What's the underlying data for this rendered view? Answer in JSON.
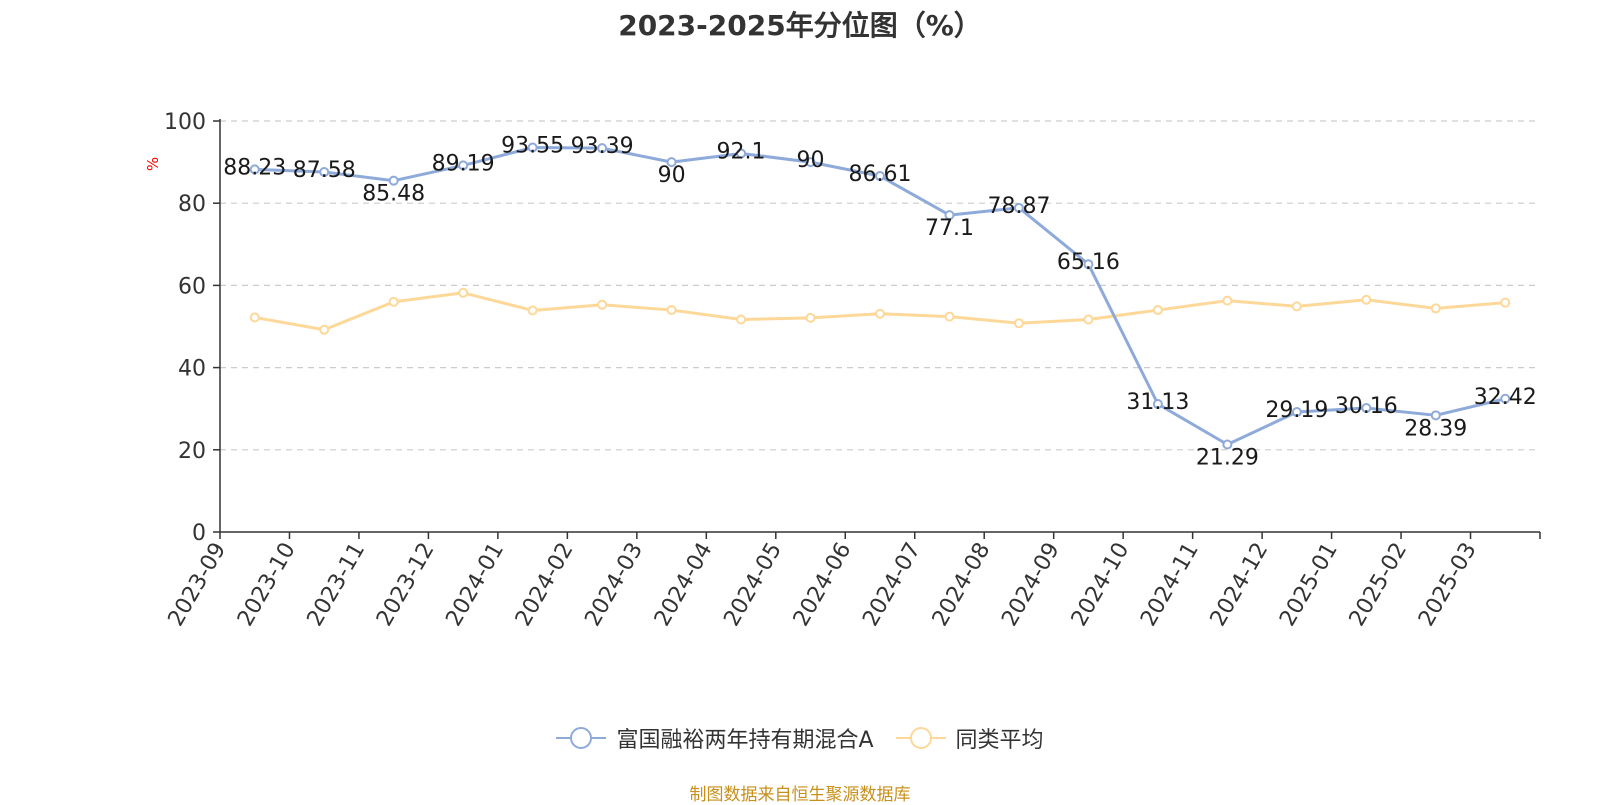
{
  "chart_data": {
    "type": "line",
    "title": "2023-2025年分位图（%）",
    "ylabel": "%",
    "ylim": [
      0,
      100
    ],
    "yticks": [
      0,
      20,
      40,
      60,
      80,
      100
    ],
    "grid": true,
    "legend_position": "bottom",
    "categories": [
      "2023-09",
      "2023-10",
      "2023-11",
      "2023-12",
      "2024-01",
      "2024-02",
      "2024-03",
      "2024-04",
      "2024-05",
      "2024-06",
      "2024-07",
      "2024-08",
      "2024-09",
      "2024-10",
      "2024-11",
      "2024-12",
      "2025-01",
      "2025-02",
      "2025-03"
    ],
    "series": [
      {
        "name": "富国融裕两年持有期混合A",
        "color": "#8eaadb",
        "values": [
          88.23,
          87.58,
          85.48,
          89.19,
          93.55,
          93.39,
          90,
          92.1,
          90,
          86.61,
          77.1,
          78.87,
          65.16,
          31.13,
          21.29,
          29.19,
          30.16,
          28.39,
          32.42
        ],
        "labels": [
          "88.23",
          "87.58",
          "85.48",
          "89.19",
          "93.55",
          "93.39",
          "90",
          "92.1",
          "90",
          "86.61",
          "77.1",
          "78.87",
          "65.16",
          "31.13",
          "21.29",
          "29.19",
          "30.16",
          "28.39",
          "32.42"
        ]
      },
      {
        "name": "同类平均",
        "color": "#fdd898",
        "values": [
          52.2,
          49.2,
          56.0,
          58.2,
          53.9,
          55.3,
          54.0,
          51.7,
          52.1,
          53.1,
          52.4,
          50.8,
          51.7,
          54.0,
          56.3,
          54.9,
          56.5,
          54.4,
          55.8
        ]
      }
    ]
  },
  "source": "制图数据来自恒生聚源数据库"
}
